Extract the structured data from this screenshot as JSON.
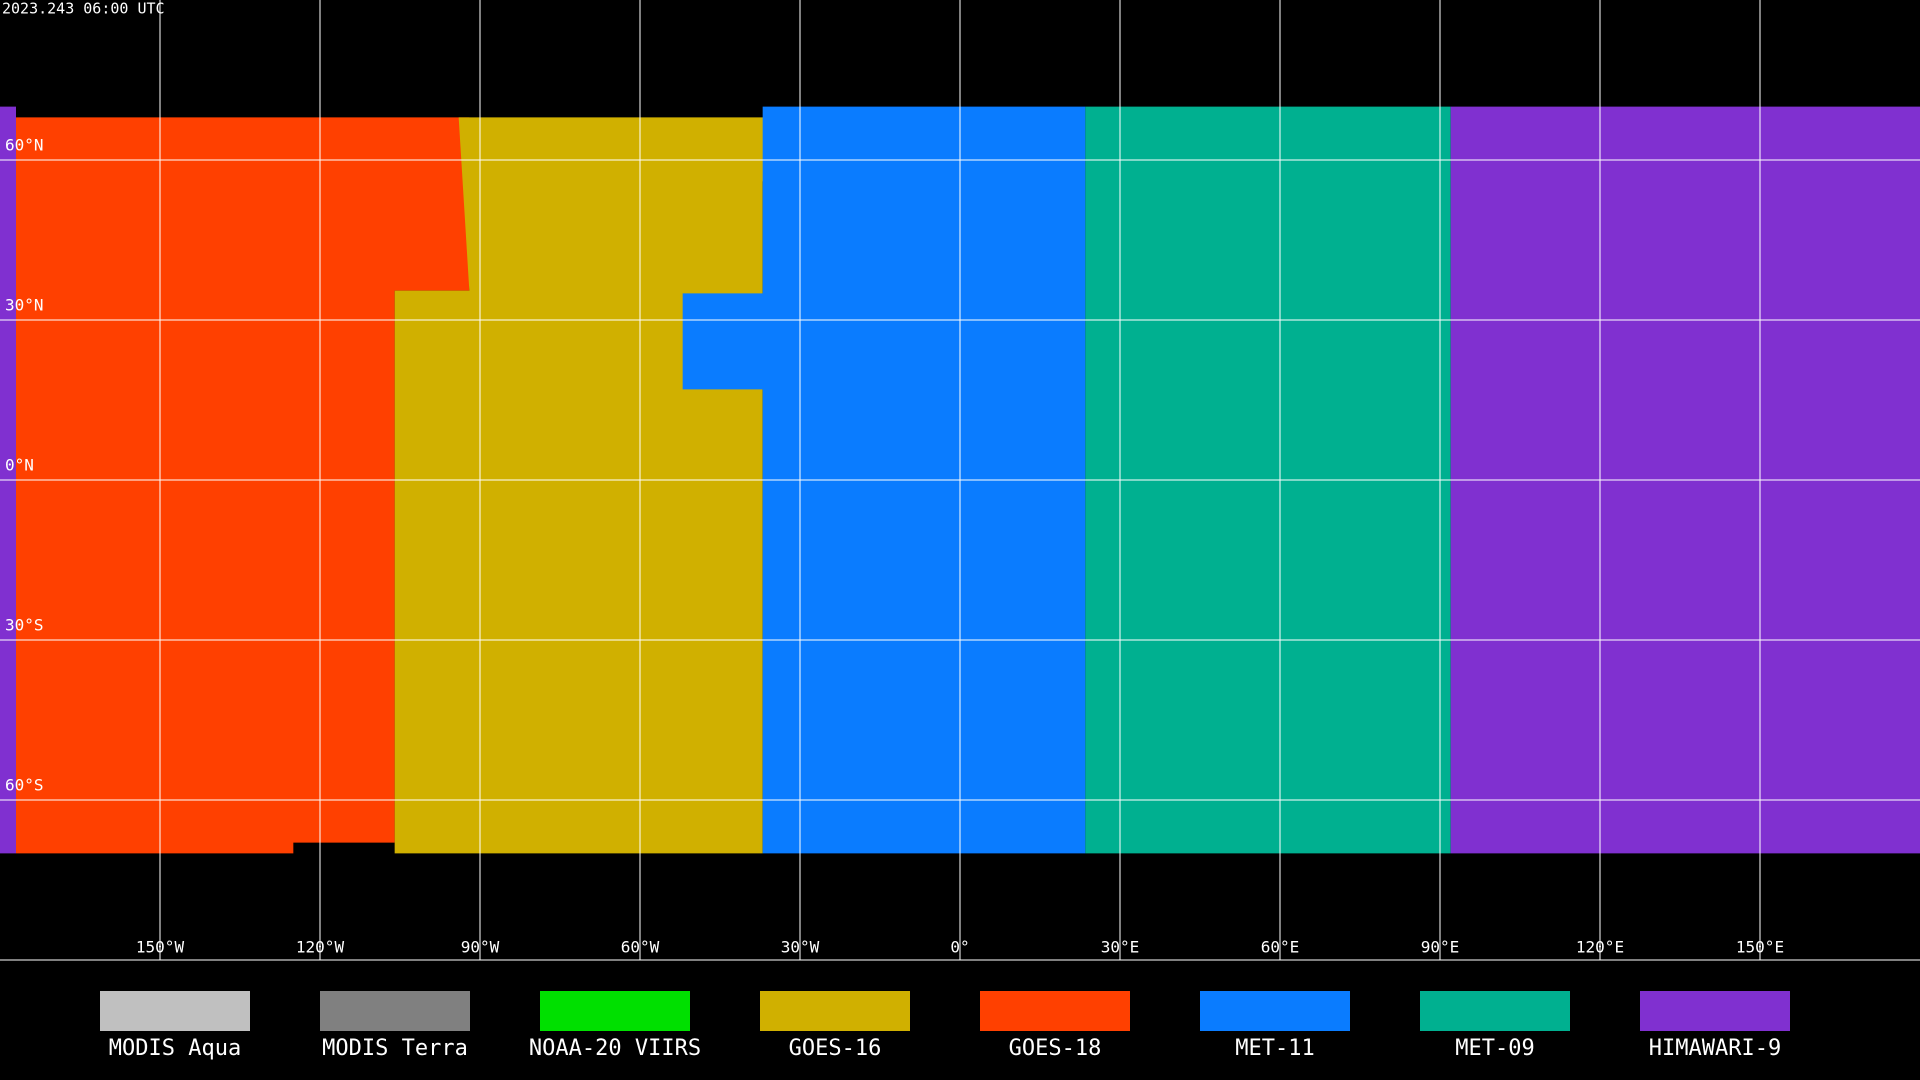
{
  "header": {
    "timestamp": "2023.243 06:00 UTC"
  },
  "grid": {
    "longitudes": [
      {
        "value": -150,
        "label": "150°W"
      },
      {
        "value": -120,
        "label": "120°W"
      },
      {
        "value": -90,
        "label": "90°W"
      },
      {
        "value": -60,
        "label": "60°W"
      },
      {
        "value": -30,
        "label": "30°W"
      },
      {
        "value": 0,
        "label": "0°"
      },
      {
        "value": 30,
        "label": "30°E"
      },
      {
        "value": 60,
        "label": "60°E"
      },
      {
        "value": 90,
        "label": "90°E"
      },
      {
        "value": 120,
        "label": "120°E"
      },
      {
        "value": 150,
        "label": "150°E"
      }
    ],
    "latitudes": [
      {
        "value": 60,
        "label": "60°N"
      },
      {
        "value": 30,
        "label": "30°N"
      },
      {
        "value": 0,
        "label": "0°N"
      },
      {
        "value": -30,
        "label": "30°S"
      },
      {
        "value": -60,
        "label": "60°S"
      }
    ]
  },
  "legend": {
    "items": [
      {
        "label": "MODIS Aqua",
        "color": "#c0c0c0"
      },
      {
        "label": "MODIS Terra",
        "color": "#808080"
      },
      {
        "label": "NOAA-20 VIIRS",
        "color": "#00e000"
      },
      {
        "label": "GOES-16",
        "color": "#d0b000"
      },
      {
        "label": "GOES-18",
        "color": "#ff4000"
      },
      {
        "label": "MET-11",
        "color": "#0a7cff"
      },
      {
        "label": "MET-09",
        "color": "#00b090"
      },
      {
        "label": "HIMAWARI-9",
        "color": "#8030d0"
      }
    ]
  }
}
